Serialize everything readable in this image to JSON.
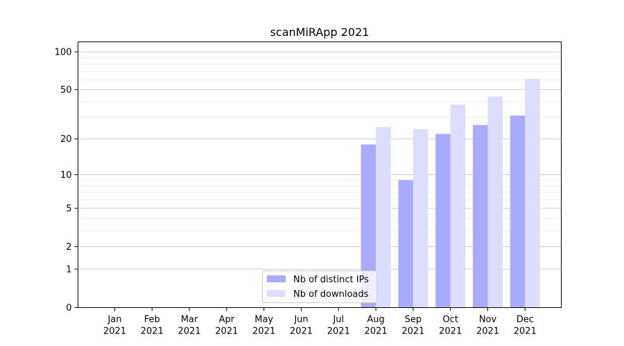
{
  "chart_data": {
    "type": "bar",
    "title": "scanMiRApp 2021",
    "xlabel": "",
    "ylabel": "",
    "y_scale": "log1p",
    "ylim": [
      0,
      120
    ],
    "y_ticks": [
      0,
      1,
      2,
      5,
      10,
      20,
      50,
      100
    ],
    "grid": "horizontal, major and minor",
    "legend_position": "bottom-center",
    "categories": [
      [
        "Jan",
        "2021"
      ],
      [
        "Feb",
        "2021"
      ],
      [
        "Mar",
        "2021"
      ],
      [
        "Apr",
        "2021"
      ],
      [
        "May",
        "2021"
      ],
      [
        "Jun",
        "2021"
      ],
      [
        "Jul",
        "2021"
      ],
      [
        "Aug",
        "2021"
      ],
      [
        "Sep",
        "2021"
      ],
      [
        "Oct",
        "2021"
      ],
      [
        "Nov",
        "2021"
      ],
      [
        "Dec",
        "2021"
      ]
    ],
    "series": [
      {
        "name": "Nb of distinct IPs",
        "color": "#aaaaff",
        "values": [
          0,
          0,
          0,
          0,
          0,
          0,
          0,
          18,
          9,
          22,
          26,
          31
        ]
      },
      {
        "name": "Nb of downloads",
        "color": "#ddddff",
        "values": [
          0,
          0,
          0,
          0,
          0,
          0,
          0,
          25,
          24,
          38,
          44,
          61
        ]
      }
    ]
  }
}
